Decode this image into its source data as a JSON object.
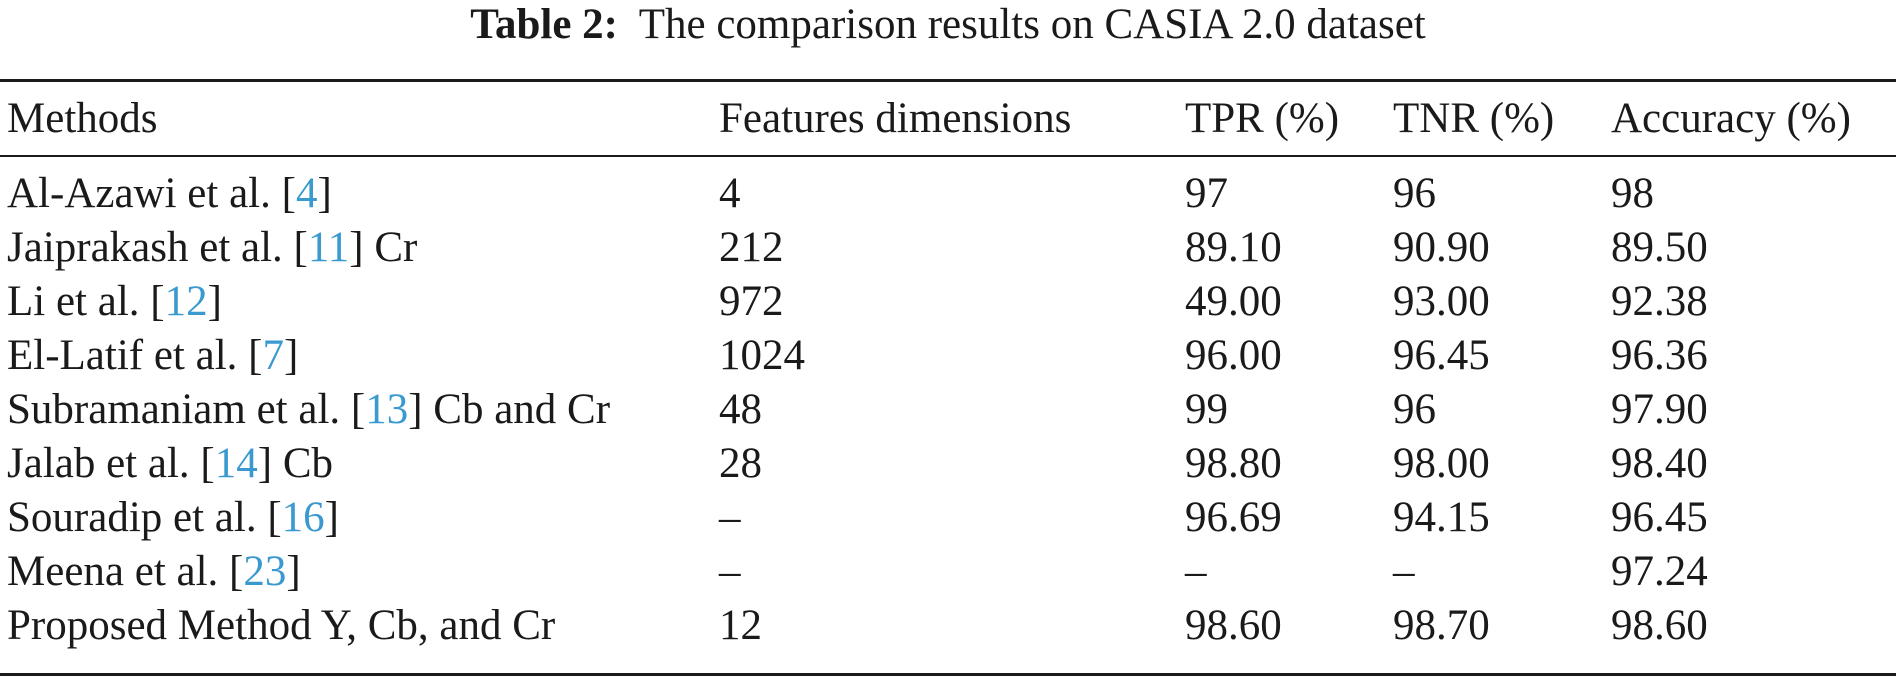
{
  "caption": {
    "label": "Table 2:",
    "text": "The comparison results on CASIA 2.0 dataset"
  },
  "table": {
    "headers": [
      "Methods",
      "Features dimensions",
      "TPR (%)",
      "TNR (%)",
      "Accuracy (%)"
    ],
    "rows": [
      {
        "method_prefix": "Al-Azawi et al. [",
        "cite": "4",
        "method_suffix": "]",
        "features": "4",
        "tpr": "97",
        "tnr": "96",
        "accuracy": "98"
      },
      {
        "method_prefix": "Jaiprakash et al. [",
        "cite": "11",
        "method_suffix": "] Cr",
        "features": "212",
        "tpr": "89.10",
        "tnr": "90.90",
        "accuracy": "89.50"
      },
      {
        "method_prefix": "Li et al. [",
        "cite": "12",
        "method_suffix": "]",
        "features": "972",
        "tpr": "49.00",
        "tnr": "93.00",
        "accuracy": "92.38"
      },
      {
        "method_prefix": "El-Latif et al. [",
        "cite": "7",
        "method_suffix": "]",
        "features": "1024",
        "tpr": "96.00",
        "tnr": "96.45",
        "accuracy": "96.36"
      },
      {
        "method_prefix": "Subramaniam et al. [",
        "cite": "13",
        "method_suffix": "] Cb and Cr",
        "features": "48",
        "tpr": "99",
        "tnr": "96",
        "accuracy": "97.90"
      },
      {
        "method_prefix": "Jalab et al. [",
        "cite": "14",
        "method_suffix": "] Cb",
        "features": "28",
        "tpr": "98.80",
        "tnr": "98.00",
        "accuracy": "98.40"
      },
      {
        "method_prefix": "Souradip et al. [",
        "cite": "16",
        "method_suffix": "]",
        "features": "–",
        "tpr": "96.69",
        "tnr": "94.15",
        "accuracy": "96.45"
      },
      {
        "method_prefix": "Meena et al. [",
        "cite": "23",
        "method_suffix": "]",
        "features": "–",
        "tpr": "–",
        "tnr": "–",
        "accuracy": "97.24"
      },
      {
        "method_prefix": "Proposed Method Y, Cb, and Cr",
        "cite": "",
        "method_suffix": "",
        "features": "12",
        "tpr": "98.60",
        "tnr": "98.70",
        "accuracy": "98.60"
      }
    ]
  },
  "colors": {
    "text": "#1a1a1a",
    "citation_link": "#3a9ad0",
    "background": "#ffffff"
  }
}
